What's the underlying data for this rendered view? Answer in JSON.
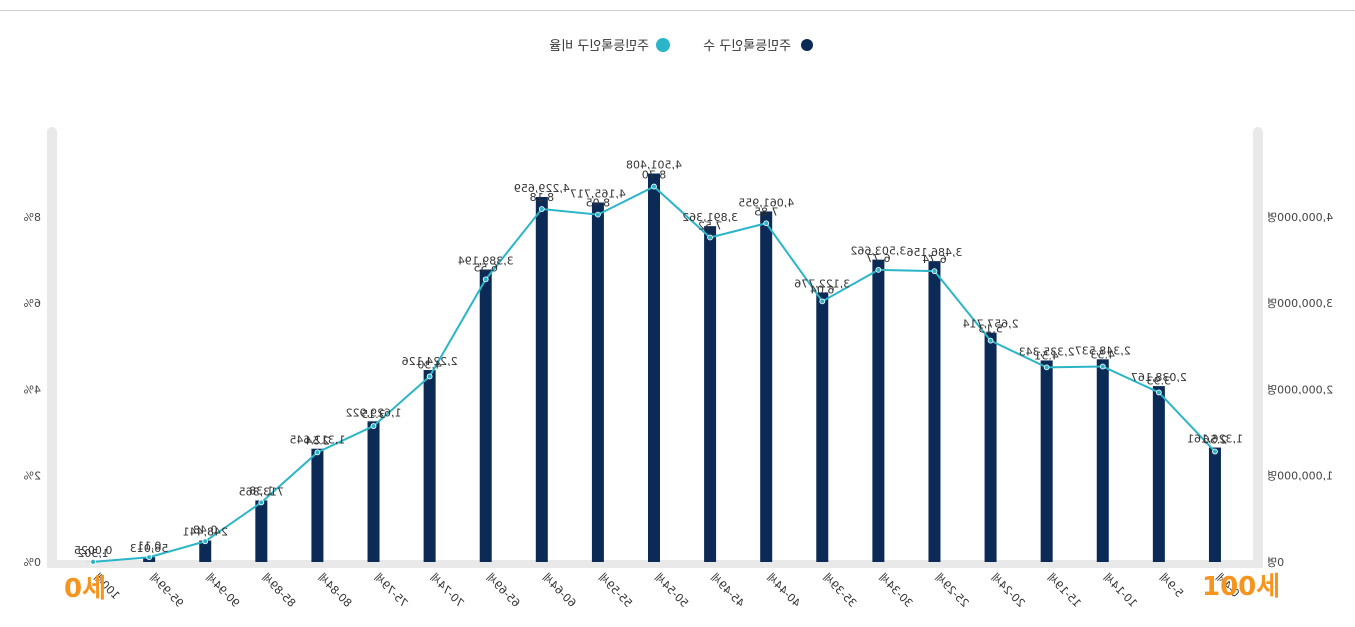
{
  "legend": {
    "series1": "주민등록인구 수",
    "series2": "주민등록인구 비율"
  },
  "markers": {
    "young": "0세",
    "old": "100세"
  },
  "colors": {
    "bar": "#0b2a55",
    "line": "#2bb5c8",
    "panel": "#e9e9e9",
    "marker": "#f7941d"
  },
  "chart_data": {
    "type": "bar",
    "categories": [
      "0-4세",
      "5-9세",
      "10-14세",
      "15-19세",
      "20-24세",
      "25-29세",
      "30-34세",
      "35-39세",
      "40-44세",
      "45-49세",
      "50-54세",
      "55-59세",
      "60-64세",
      "65-69세",
      "70-74세",
      "75-79세",
      "80-84세",
      "85-89세",
      "90-94세",
      "95-99세",
      "100세"
    ],
    "series": [
      {
        "name": "주민등록인구 수",
        "type": "bar",
        "axis": "left",
        "values": [
          1326161,
          2038167,
          2348537,
          2335343,
          2657714,
          3486156,
          3503662,
          3122776,
          4061955,
          3891362,
          4501408,
          4165717,
          4229659,
          3389194,
          2224126,
          1629922,
          1312645,
          713365,
          248441,
          56013,
          1302
        ],
        "labels": [
          "1,326,161",
          "2,038,167",
          "2,348,537",
          "2,335,343",
          "2,657,714",
          "3,486,156",
          "3,503,662",
          "3,122,776",
          "4,061,955",
          "3,891,362",
          "4,501,408",
          "4,165,717",
          "4,229,659",
          "3,389,194",
          "2,224,126",
          "1,629,922",
          "1,312,645",
          "713,365",
          "248,441",
          "56,013",
          "1,302"
        ]
      },
      {
        "name": "주민등록인구 비율",
        "type": "line",
        "axis": "right",
        "values": [
          2.56,
          3.93,
          4.53,
          4.51,
          5.13,
          6.74,
          6.77,
          6.04,
          7.85,
          7.52,
          8.7,
          8.05,
          8.18,
          6.55,
          4.3,
          3.15,
          2.54,
          1.38,
          0.48,
          0.11,
          0.0025
        ],
        "labels": [
          "2.56",
          "3.93",
          "4.53",
          "4.51",
          "5.13",
          "6.74",
          "6.77",
          "6.04",
          "7.85",
          "7.52",
          "8.70",
          "8.05",
          "8.18",
          "6.55",
          "4.30",
          "3.15",
          "2.54",
          "1.38",
          "0.48",
          "0.11",
          "0.0025"
        ]
      }
    ],
    "left_axis": {
      "ticks": [
        0,
        1000000,
        2000000,
        3000000,
        4000000
      ],
      "tick_labels": [
        "0명",
        "1,000,000명",
        "2,000,000명",
        "3,000,000명",
        "4,000,000명"
      ],
      "ylim": [
        0,
        5000000
      ]
    },
    "right_axis": {
      "ticks": [
        0,
        2,
        4,
        6,
        8
      ],
      "tick_labels": [
        "0%",
        "2%",
        "4%",
        "6%",
        "8%"
      ],
      "ylim": [
        0,
        10
      ]
    },
    "legend_position": "top-center",
    "grid": false
  }
}
